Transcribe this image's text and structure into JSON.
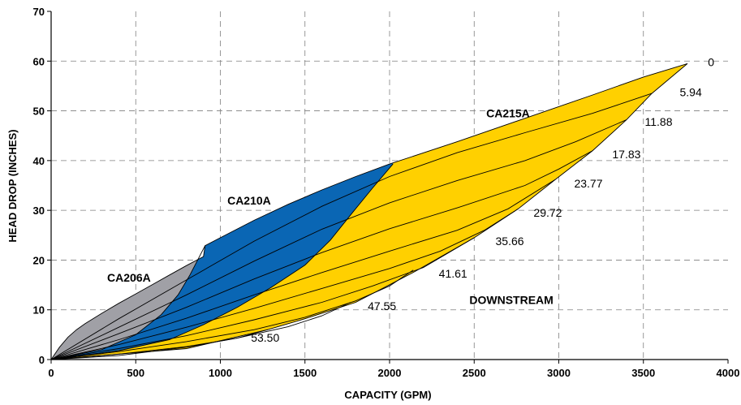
{
  "chart_data": {
    "type": "area",
    "title": "",
    "xlabel": "CAPACITY (GPM)",
    "ylabel": "HEAD DROP (INCHES)",
    "xlim": [
      0,
      4000
    ],
    "ylim": [
      0,
      70
    ],
    "xticks": [
      "0",
      "500",
      "1000",
      "1500",
      "2000",
      "2500",
      "3000",
      "3500",
      "4000"
    ],
    "yticks": [
      "0",
      "10",
      "20",
      "30",
      "40",
      "50",
      "60",
      "70"
    ],
    "grid": true,
    "colors": {
      "CA206A": "#a0a0a6",
      "CA210A": "#0a66b4",
      "CA215A": "#ffd000"
    },
    "regions": [
      {
        "name": "CA206A",
        "label_at": [
          460,
          16.5
        ]
      },
      {
        "name": "CA210A",
        "label_at": [
          1170,
          32
        ]
      },
      {
        "name": "CA215A",
        "label_at": [
          2700,
          49.5
        ]
      },
      {
        "name": "DOWNSTREAM",
        "label_at": [
          2720,
          12
        ]
      }
    ],
    "curves": [
      {
        "label": "0",
        "end": [
          3760,
          59.5
        ],
        "label_at": [
          3900,
          59.8
        ],
        "points": [
          [
            0,
            0
          ],
          [
            50,
            2.5
          ],
          [
            100,
            4.5
          ],
          [
            150,
            6
          ],
          [
            200,
            7.2
          ],
          [
            300,
            9.3
          ],
          [
            400,
            11.3
          ],
          [
            500,
            13.2
          ],
          [
            600,
            15.1
          ],
          [
            700,
            17
          ],
          [
            800,
            18.9
          ],
          [
            900,
            20.7
          ],
          [
            910,
            22.9
          ],
          [
            1000,
            24.5
          ],
          [
            1200,
            28
          ],
          [
            1400,
            31.2
          ],
          [
            1600,
            34.1
          ],
          [
            1800,
            36.8
          ],
          [
            2000,
            39.3
          ],
          [
            2400,
            43.8
          ],
          [
            2800,
            48.5
          ],
          [
            3200,
            53.2
          ],
          [
            3500,
            56.8
          ],
          [
            3760,
            59.5
          ]
        ]
      },
      {
        "label": "5.94",
        "end": [
          3550,
          53.5
        ],
        "label_at": [
          3780,
          53.8
        ],
        "points": [
          [
            0,
            0
          ],
          [
            400,
            8.2
          ],
          [
            800,
            16
          ],
          [
            1200,
            23.8
          ],
          [
            1600,
            30.8
          ],
          [
            2000,
            36.8
          ],
          [
            2400,
            41.6
          ],
          [
            2800,
            45.6
          ],
          [
            3200,
            49.5
          ],
          [
            3550,
            53.5
          ]
        ]
      },
      {
        "label": "11.88",
        "end": [
          3400,
          48.2
        ],
        "label_at": [
          3590,
          47.8
        ],
        "points": [
          [
            0,
            0
          ],
          [
            400,
            6.5
          ],
          [
            800,
            13
          ],
          [
            1200,
            19.8
          ],
          [
            1600,
            26.2
          ],
          [
            2000,
            31.5
          ],
          [
            2400,
            36
          ],
          [
            2800,
            40
          ],
          [
            3100,
            43.8
          ],
          [
            3400,
            48.2
          ]
        ]
      },
      {
        "label": "17.83",
        "end": [
          3200,
          42
        ],
        "label_at": [
          3400,
          41.3
        ],
        "points": [
          [
            0,
            0
          ],
          [
            400,
            5.2
          ],
          [
            800,
            10.5
          ],
          [
            1200,
            16.2
          ],
          [
            1600,
            21.5
          ],
          [
            2000,
            26.3
          ],
          [
            2400,
            30.5
          ],
          [
            2800,
            35
          ],
          [
            3000,
            38.3
          ],
          [
            3200,
            42
          ]
        ]
      },
      {
        "label": "23.77",
        "end": [
          2980,
          36.2
        ],
        "label_at": [
          3175,
          35.4
        ],
        "points": [
          [
            0,
            0
          ],
          [
            400,
            4
          ],
          [
            800,
            8.3
          ],
          [
            1200,
            13
          ],
          [
            1600,
            17.5
          ],
          [
            2000,
            21.8
          ],
          [
            2400,
            26
          ],
          [
            2700,
            30.3
          ],
          [
            2980,
            36.2
          ]
        ]
      },
      {
        "label": "29.72",
        "end": [
          2760,
          30.3
        ],
        "label_at": [
          2935,
          29.5
        ],
        "points": [
          [
            0,
            0
          ],
          [
            400,
            3
          ],
          [
            800,
            6.5
          ],
          [
            1200,
            10.3
          ],
          [
            1600,
            14.3
          ],
          [
            2000,
            18.3
          ],
          [
            2300,
            21.8
          ],
          [
            2560,
            26
          ],
          [
            2760,
            30.3
          ]
        ]
      },
      {
        "label": "35.66",
        "end": [
          2500,
          24.5
        ],
        "label_at": [
          2710,
          23.8
        ],
        "points": [
          [
            0,
            0
          ],
          [
            400,
            2.2
          ],
          [
            800,
            4.8
          ],
          [
            1200,
            8
          ],
          [
            1600,
            11.5
          ],
          [
            1900,
            14.8
          ],
          [
            2200,
            18.5
          ],
          [
            2500,
            24.5
          ]
        ]
      },
      {
        "label": "41.61",
        "end": [
          2140,
          18
        ],
        "label_at": [
          2375,
          17.3
        ],
        "points": [
          [
            0,
            0
          ],
          [
            400,
            1.6
          ],
          [
            800,
            3.6
          ],
          [
            1200,
            6
          ],
          [
            1500,
            8.5
          ],
          [
            1800,
            11.8
          ],
          [
            2000,
            14.8
          ],
          [
            2140,
            18
          ]
        ]
      },
      {
        "label": "47.55",
        "end": [
          1770,
          11.5
        ],
        "label_at": [
          1955,
          10.8
        ],
        "points": [
          [
            0,
            0
          ],
          [
            400,
            1.1
          ],
          [
            800,
            2.6
          ],
          [
            1100,
            4.3
          ],
          [
            1400,
            6.6
          ],
          [
            1600,
            8.8
          ],
          [
            1770,
            11.5
          ]
        ]
      },
      {
        "label": "53.50",
        "end": [
          1280,
          6
        ],
        "label_at": [
          1265,
          4.4
        ],
        "points": [
          [
            0,
            0
          ],
          [
            400,
            0.8
          ],
          [
            800,
            2.5
          ],
          [
            1100,
            4.3
          ],
          [
            1280,
            6
          ]
        ]
      },
      {
        "label": "",
        "end": [
          3760,
          59.5
        ],
        "label_at": null,
        "points": [
          [
            0,
            0
          ],
          [
            800,
            2.2
          ],
          [
            1280,
            6
          ],
          [
            1500,
            8.2
          ],
          [
            1800,
            11.5
          ],
          [
            2150,
            17.7
          ],
          [
            2500,
            24.5
          ],
          [
            2760,
            30.3
          ],
          [
            2980,
            36.2
          ],
          [
            3200,
            42
          ],
          [
            3400,
            48.2
          ],
          [
            3550,
            53.5
          ],
          [
            3760,
            59.5
          ]
        ]
      }
    ],
    "boundaries": [
      {
        "name": "CA206A-CA210A",
        "points": [
          [
            0,
            0
          ],
          [
            300,
            2
          ],
          [
            500,
            5
          ],
          [
            650,
            9
          ],
          [
            750,
            13
          ],
          [
            820,
            17
          ],
          [
            910,
            22.9
          ]
        ]
      },
      {
        "name": "CA210A-CA215A",
        "points": [
          [
            0,
            0
          ],
          [
            400,
            1.8
          ],
          [
            700,
            4
          ],
          [
            900,
            7
          ],
          [
            1100,
            10.5
          ],
          [
            1300,
            14.5
          ],
          [
            1500,
            19
          ],
          [
            1650,
            24
          ],
          [
            1780,
            29.5
          ],
          [
            1900,
            34.5
          ],
          [
            2020,
            39.3
          ]
        ]
      }
    ]
  }
}
